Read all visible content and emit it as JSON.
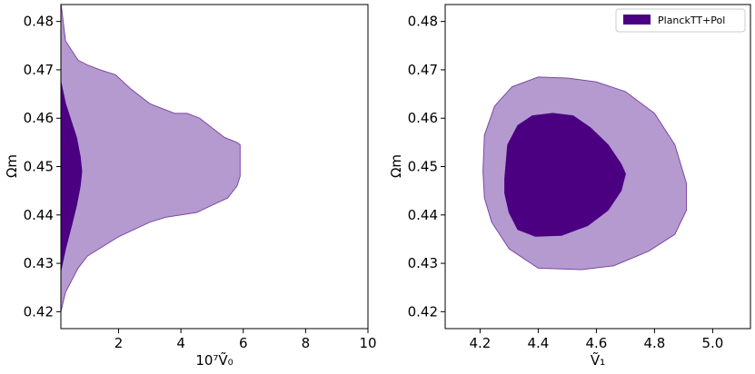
{
  "chart_data": [
    {
      "type": "contour",
      "xlabel": "10⁷Ṽ₀",
      "ylabel": "Ωm",
      "xlim": [
        0.15,
        10
      ],
      "ylim": [
        0.4165,
        0.4835
      ],
      "xticks": [
        2,
        4,
        6,
        8,
        10
      ],
      "yticks": [
        0.42,
        0.43,
        0.44,
        0.45,
        0.46,
        0.47,
        0.48
      ],
      "xtick_labels": [
        "2",
        "4",
        "6",
        "8",
        "10"
      ],
      "ytick_labels": [
        "0.42",
        "0.43",
        "0.44",
        "0.45",
        "0.46",
        "0.47",
        "0.48"
      ],
      "grid": false,
      "regions": [
        {
          "level": "95%",
          "color": "#b59ad0",
          "edge_color": "#7a4aa6",
          "upper_boundary": [
            [
              0.15,
              0.484
            ],
            [
              0.3,
              0.476
            ],
            [
              0.7,
              0.472
            ],
            [
              1.0,
              0.471
            ],
            [
              1.4,
              0.47
            ],
            [
              1.9,
              0.469
            ],
            [
              2.4,
              0.466
            ],
            [
              3.0,
              0.463
            ],
            [
              3.4,
              0.462
            ],
            [
              3.8,
              0.461
            ],
            [
              4.2,
              0.461
            ],
            [
              4.6,
              0.46
            ],
            [
              5.0,
              0.458
            ],
            [
              5.4,
              0.456
            ],
            [
              5.8,
              0.455
            ],
            [
              5.9,
              0.4545
            ]
          ],
          "lower_boundary": [
            [
              0.15,
              0.42
            ],
            [
              0.3,
              0.424
            ],
            [
              0.7,
              0.429
            ],
            [
              1.0,
              0.4315
            ],
            [
              1.5,
              0.4335
            ],
            [
              2.0,
              0.4355
            ],
            [
              2.5,
              0.437
            ],
            [
              3.0,
              0.4385
            ],
            [
              3.5,
              0.4395
            ],
            [
              4.0,
              0.44
            ],
            [
              4.5,
              0.4405
            ],
            [
              5.0,
              0.442
            ],
            [
              5.5,
              0.4435
            ],
            [
              5.8,
              0.446
            ],
            [
              5.9,
              0.448
            ]
          ]
        },
        {
          "level": "68%",
          "color": "#4b0082",
          "edge_color": "#4b0082",
          "upper_boundary": [
            [
              0.15,
              0.4675
            ],
            [
              0.3,
              0.463
            ],
            [
              0.5,
              0.459
            ],
            [
              0.65,
              0.456
            ],
            [
              0.77,
              0.452
            ],
            [
              0.82,
              0.449
            ]
          ],
          "lower_boundary": [
            [
              0.15,
              0.4285
            ],
            [
              0.3,
              0.433
            ],
            [
              0.5,
              0.438
            ],
            [
              0.65,
              0.442
            ],
            [
              0.77,
              0.446
            ],
            [
              0.82,
              0.449
            ]
          ]
        }
      ]
    },
    {
      "type": "contour",
      "xlabel": "Ṽ₁",
      "ylabel": "Ωm",
      "xlim": [
        4.08,
        5.13
      ],
      "ylim": [
        0.4165,
        0.4835
      ],
      "xticks": [
        4.2,
        4.4,
        4.6,
        4.8,
        5.0
      ],
      "yticks": [
        0.42,
        0.43,
        0.44,
        0.45,
        0.46,
        0.47,
        0.48
      ],
      "xtick_labels": [
        "4.2",
        "4.4",
        "4.6",
        "4.8",
        "5.0"
      ],
      "ytick_labels": [
        "0.42",
        "0.43",
        "0.44",
        "0.45",
        "0.46",
        "0.47",
        "0.48"
      ],
      "grid": false,
      "legend": {
        "placement": "top-right",
        "entries": [
          {
            "label": "PlanckTT+Pol",
            "color": "#4b0082"
          }
        ]
      },
      "regions": [
        {
          "level": "95%",
          "color": "#b59ad0",
          "edge_color": "#7a4aa6",
          "polygon": [
            [
              4.21,
              0.449
            ],
            [
              4.215,
              0.4565
            ],
            [
              4.25,
              0.4625
            ],
            [
              4.31,
              0.4665
            ],
            [
              4.4,
              0.4685
            ],
            [
              4.5,
              0.4683
            ],
            [
              4.6,
              0.4675
            ],
            [
              4.7,
              0.4655
            ],
            [
              4.8,
              0.461
            ],
            [
              4.87,
              0.4545
            ],
            [
              4.91,
              0.4465
            ],
            [
              4.91,
              0.441
            ],
            [
              4.87,
              0.436
            ],
            [
              4.78,
              0.4325
            ],
            [
              4.66,
              0.4295
            ],
            [
              4.55,
              0.4287
            ],
            [
              4.4,
              0.429
            ],
            [
              4.3,
              0.433
            ],
            [
              4.24,
              0.4385
            ],
            [
              4.215,
              0.4435
            ]
          ]
        },
        {
          "level": "68%",
          "color": "#4b0082",
          "edge_color": "#4b0082",
          "polygon": [
            [
              4.285,
              0.4475
            ],
            [
              4.295,
              0.4545
            ],
            [
              4.33,
              0.4585
            ],
            [
              4.38,
              0.4605
            ],
            [
              4.45,
              0.461
            ],
            [
              4.52,
              0.4605
            ],
            [
              4.58,
              0.458
            ],
            [
              4.64,
              0.4545
            ],
            [
              4.685,
              0.4505
            ],
            [
              4.7,
              0.4485
            ],
            [
              4.685,
              0.445
            ],
            [
              4.64,
              0.441
            ],
            [
              4.57,
              0.4378
            ],
            [
              4.48,
              0.4358
            ],
            [
              4.39,
              0.4356
            ],
            [
              4.33,
              0.437
            ],
            [
              4.3,
              0.4405
            ],
            [
              4.285,
              0.4445
            ]
          ]
        }
      ]
    }
  ]
}
